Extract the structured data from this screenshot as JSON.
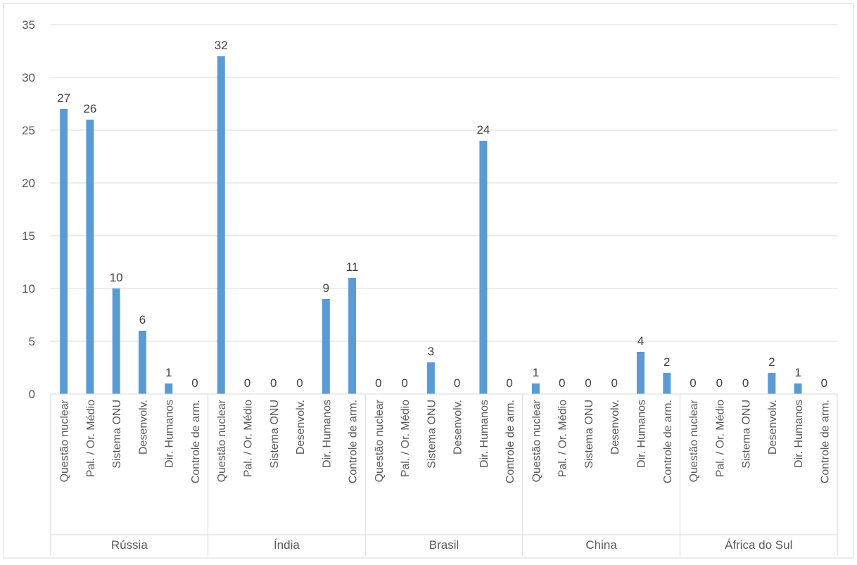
{
  "chart_data": {
    "type": "bar",
    "title": "",
    "xlabel": "",
    "ylabel": "",
    "ylim": [
      0,
      35
    ],
    "yticks": [
      0,
      5,
      10,
      15,
      20,
      25,
      30,
      35
    ],
    "grid": true,
    "legend": "none",
    "bar_color": "#5B9BD5",
    "categories": [
      "Questão nuclear",
      "Pal. / Or. Médio",
      "Sistema ONU",
      "Desenvolv.",
      "Dir. Humanos",
      "Controle de arm."
    ],
    "groups": [
      {
        "name": "Rússia",
        "values": [
          27,
          26,
          10,
          6,
          1,
          0
        ]
      },
      {
        "name": "Índia",
        "values": [
          32,
          0,
          0,
          0,
          9,
          11
        ]
      },
      {
        "name": "Brasil",
        "values": [
          0,
          0,
          3,
          0,
          24,
          0
        ]
      },
      {
        "name": "China",
        "values": [
          1,
          0,
          0,
          0,
          4,
          2
        ]
      },
      {
        "name": "África do Sul",
        "values": [
          0,
          0,
          0,
          2,
          1,
          0
        ]
      }
    ]
  }
}
